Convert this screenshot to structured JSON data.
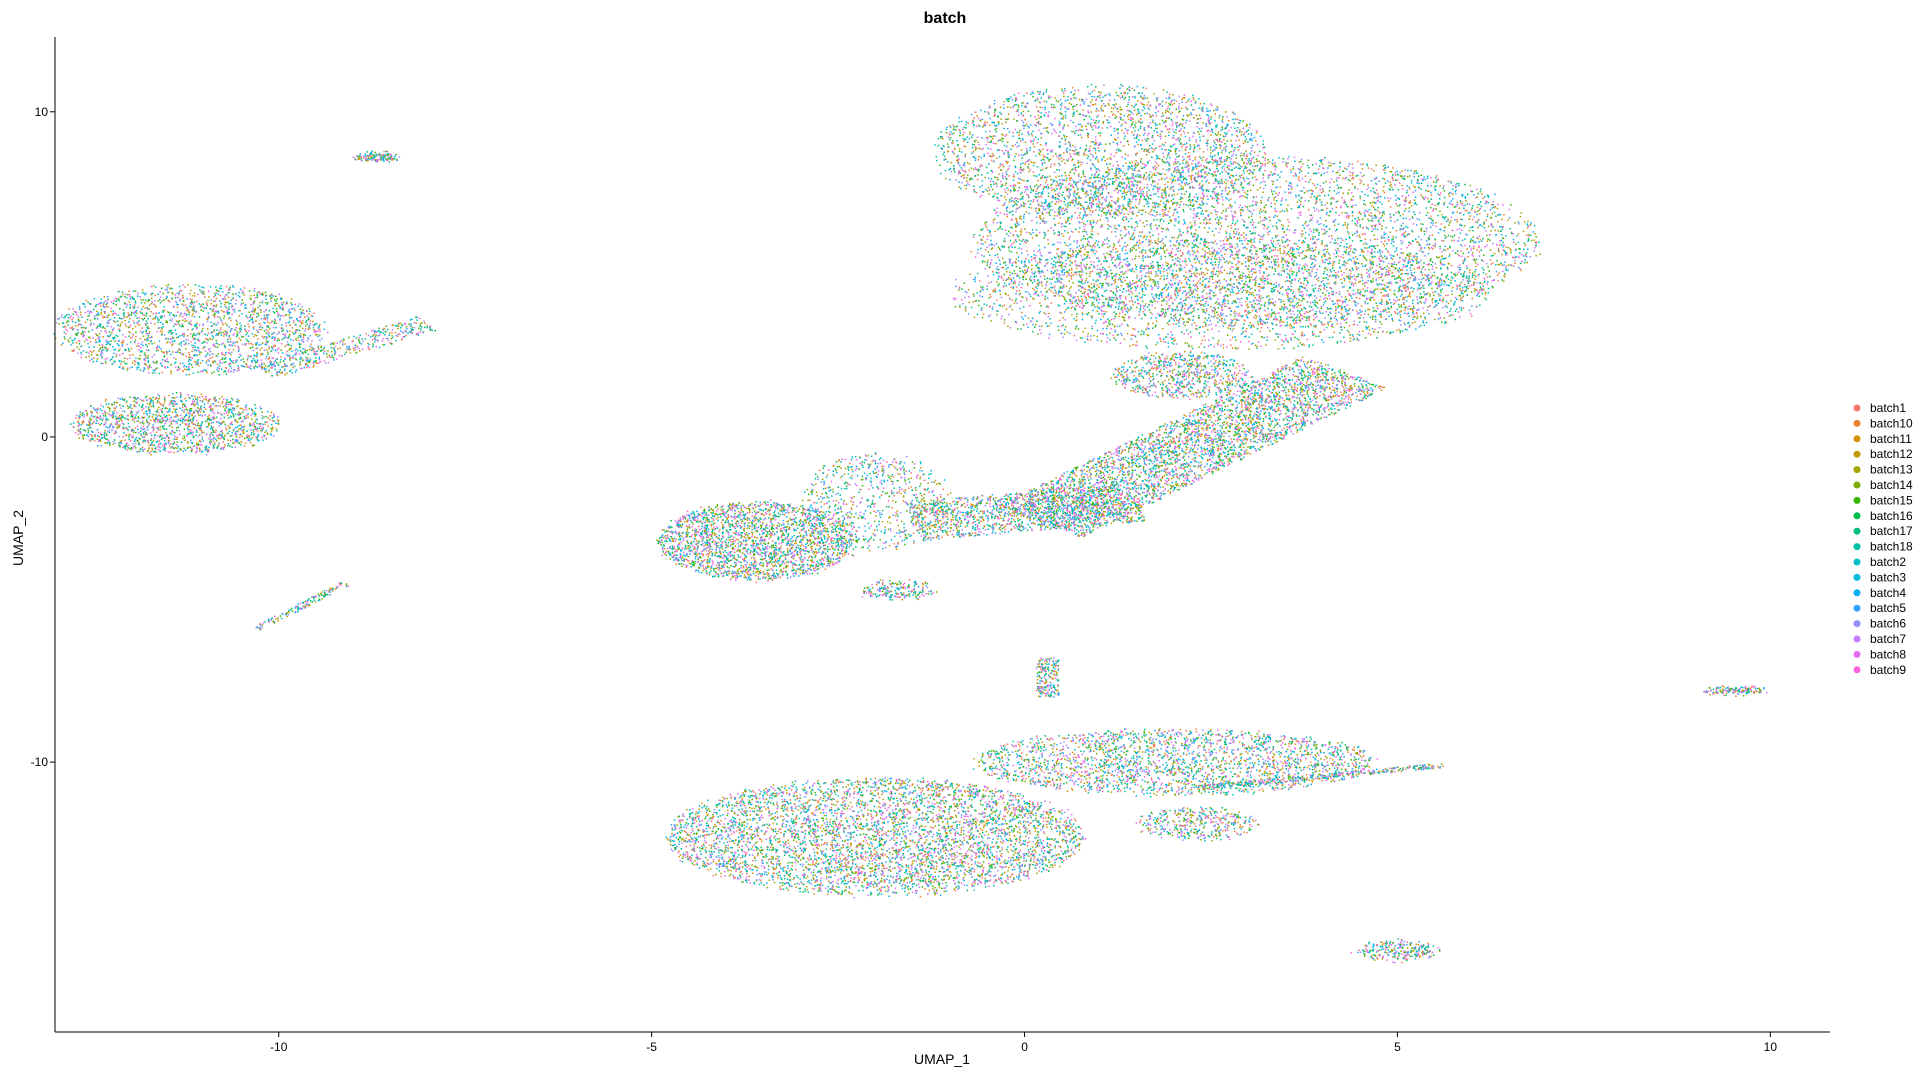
{
  "chart_data": {
    "type": "scatter",
    "title": "batch",
    "xlabel": "UMAP_1",
    "ylabel": "UMAP_2",
    "xlim": [
      -13.0,
      10.8
    ],
    "ylim": [
      -18.3,
      12.3
    ],
    "x_ticks": [
      -10,
      -5,
      0,
      5,
      10
    ],
    "y_ticks": [
      -10,
      0,
      10
    ],
    "grid": false,
    "legend_position": "right",
    "series": [
      {
        "name": "batch1",
        "color": "#F8766D"
      },
      {
        "name": "batch10",
        "color": "#EA8331"
      },
      {
        "name": "batch11",
        "color": "#D89000"
      },
      {
        "name": "batch12",
        "color": "#C09B00"
      },
      {
        "name": "batch13",
        "color": "#A3A500"
      },
      {
        "name": "batch14",
        "color": "#7CAE00"
      },
      {
        "name": "batch15",
        "color": "#39B600"
      },
      {
        "name": "batch16",
        "color": "#00BB4E"
      },
      {
        "name": "batch17",
        "color": "#00BF7D"
      },
      {
        "name": "batch18",
        "color": "#00C1A3"
      },
      {
        "name": "batch2",
        "color": "#00BFC4"
      },
      {
        "name": "batch3",
        "color": "#00BAE0"
      },
      {
        "name": "batch4",
        "color": "#00B0F6"
      },
      {
        "name": "batch5",
        "color": "#35A2FF"
      },
      {
        "name": "batch6",
        "color": "#9590FF"
      },
      {
        "name": "batch7",
        "color": "#C77CFF"
      },
      {
        "name": "batch8",
        "color": "#E76BF3"
      },
      {
        "name": "batch9",
        "color": "#FA62DB"
      }
    ],
    "clusters": [
      {
        "shape": "ellipse",
        "center": [
          1.0,
          8.8
        ],
        "radii": [
          2.2,
          2.0
        ],
        "points": 2600
      },
      {
        "shape": "ellipse",
        "center": [
          3.1,
          6.0
        ],
        "radii": [
          3.8,
          2.6
        ],
        "points": 5200
      },
      {
        "shape": "ellipse",
        "center": [
          2.6,
          4.4
        ],
        "radii": [
          3.6,
          1.7
        ],
        "points": 2200
      },
      {
        "shape": "ellipse",
        "center": [
          2.1,
          1.9
        ],
        "radii": [
          0.9,
          0.7
        ],
        "points": 700
      },
      {
        "shape": "band",
        "from": [
          0.2,
          -2.6
        ],
        "to": [
          4.3,
          2.0
        ],
        "width": 1.5,
        "points": 3800
      },
      {
        "shape": "band",
        "from": [
          -1.5,
          -2.6
        ],
        "to": [
          1.5,
          -2.0
        ],
        "width": 1.2,
        "points": 1400
      },
      {
        "shape": "ellipse",
        "center": [
          -3.6,
          -3.2
        ],
        "radii": [
          1.3,
          1.2
        ],
        "points": 2400
      },
      {
        "shape": "ellipse",
        "center": [
          -2.0,
          -2.0
        ],
        "radii": [
          1.0,
          1.5
        ],
        "points": 700
      },
      {
        "shape": "ellipse",
        "center": [
          -1.7,
          -4.7
        ],
        "radii": [
          0.5,
          0.3
        ],
        "points": 200
      },
      {
        "shape": "ellipse",
        "center": [
          -11.2,
          3.3
        ],
        "radii": [
          1.8,
          1.4
        ],
        "points": 2000
      },
      {
        "shape": "ellipse",
        "center": [
          -11.4,
          0.4
        ],
        "radii": [
          1.4,
          0.9
        ],
        "points": 1500
      },
      {
        "shape": "band",
        "from": [
          -10.2,
          2.0
        ],
        "to": [
          -8.0,
          3.5
        ],
        "width": 0.5,
        "points": 400
      },
      {
        "shape": "ellipse",
        "center": [
          -8.7,
          8.6
        ],
        "radii": [
          0.3,
          0.12
        ],
        "points": 150
      },
      {
        "shape": "band",
        "from": [
          -10.3,
          -5.9
        ],
        "to": [
          -9.1,
          -4.5
        ],
        "width": 0.15,
        "points": 150
      },
      {
        "shape": "ellipse",
        "center": [
          -2.0,
          -12.3
        ],
        "radii": [
          2.8,
          1.8
        ],
        "points": 5000
      },
      {
        "shape": "ellipse",
        "center": [
          2.0,
          -10.0
        ],
        "radii": [
          2.7,
          1.0
        ],
        "points": 2400
      },
      {
        "shape": "band",
        "from": [
          2.3,
          -10.8
        ],
        "to": [
          5.6,
          -10.1
        ],
        "width": 0.15,
        "points": 350
      },
      {
        "shape": "ellipse",
        "center": [
          2.3,
          -11.9
        ],
        "radii": [
          0.8,
          0.5
        ],
        "points": 400
      },
      {
        "shape": "band",
        "from": [
          0.3,
          -8.0
        ],
        "to": [
          0.3,
          -6.8
        ],
        "width": 0.3,
        "points": 200
      },
      {
        "shape": "ellipse",
        "center": [
          5.0,
          -15.8
        ],
        "radii": [
          0.55,
          0.3
        ],
        "points": 250
      },
      {
        "shape": "ellipse",
        "center": [
          9.5,
          -7.8
        ],
        "radii": [
          0.4,
          0.1
        ],
        "points": 150
      }
    ]
  }
}
